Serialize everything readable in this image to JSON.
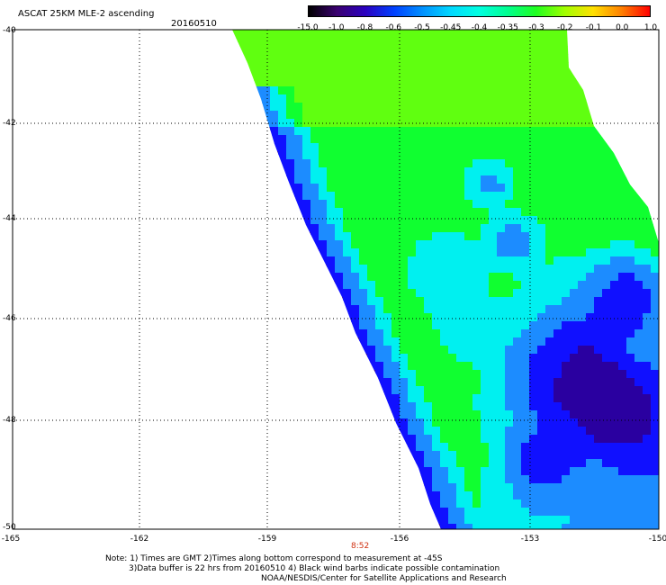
{
  "title": "ASCAT 25KM MLE-2 ascending",
  "date": "20160510",
  "colorbar": {
    "labels": [
      "-15.0",
      "-1.0",
      "-0.8",
      "-0.6",
      "-0.5",
      "-0.45",
      "-0.4",
      "-0.35",
      "-0.3",
      "-0.2",
      "-0.1",
      "0.0",
      "1.0"
    ],
    "colors": [
      "#000000",
      "#3a0070",
      "#2a00c0",
      "#0040ff",
      "#0090ff",
      "#00d8ff",
      "#00ffe0",
      "#00ff90",
      "#20ff20",
      "#a0ff00",
      "#ffe000",
      "#ff8000",
      "#ff0000"
    ]
  },
  "map": {
    "lat_labels": [
      "-40",
      "-42",
      "-44",
      "-46",
      "-48",
      "-50"
    ],
    "lon_labels": [
      "-165",
      "-162",
      "-159",
      "-156",
      "-153",
      "-150"
    ]
  },
  "time_marker": "8:52",
  "notes": {
    "line1": "Note: 1) Times are GMT 2)Times along bottom correspond to measurement at -45S",
    "line2": "3)Data buffer is 22 hrs from 20160510 4) Black wind barbs indicate possible contamination",
    "line3": "NOAA/NESDIS/Center for Satellite Applications and Research"
  }
}
